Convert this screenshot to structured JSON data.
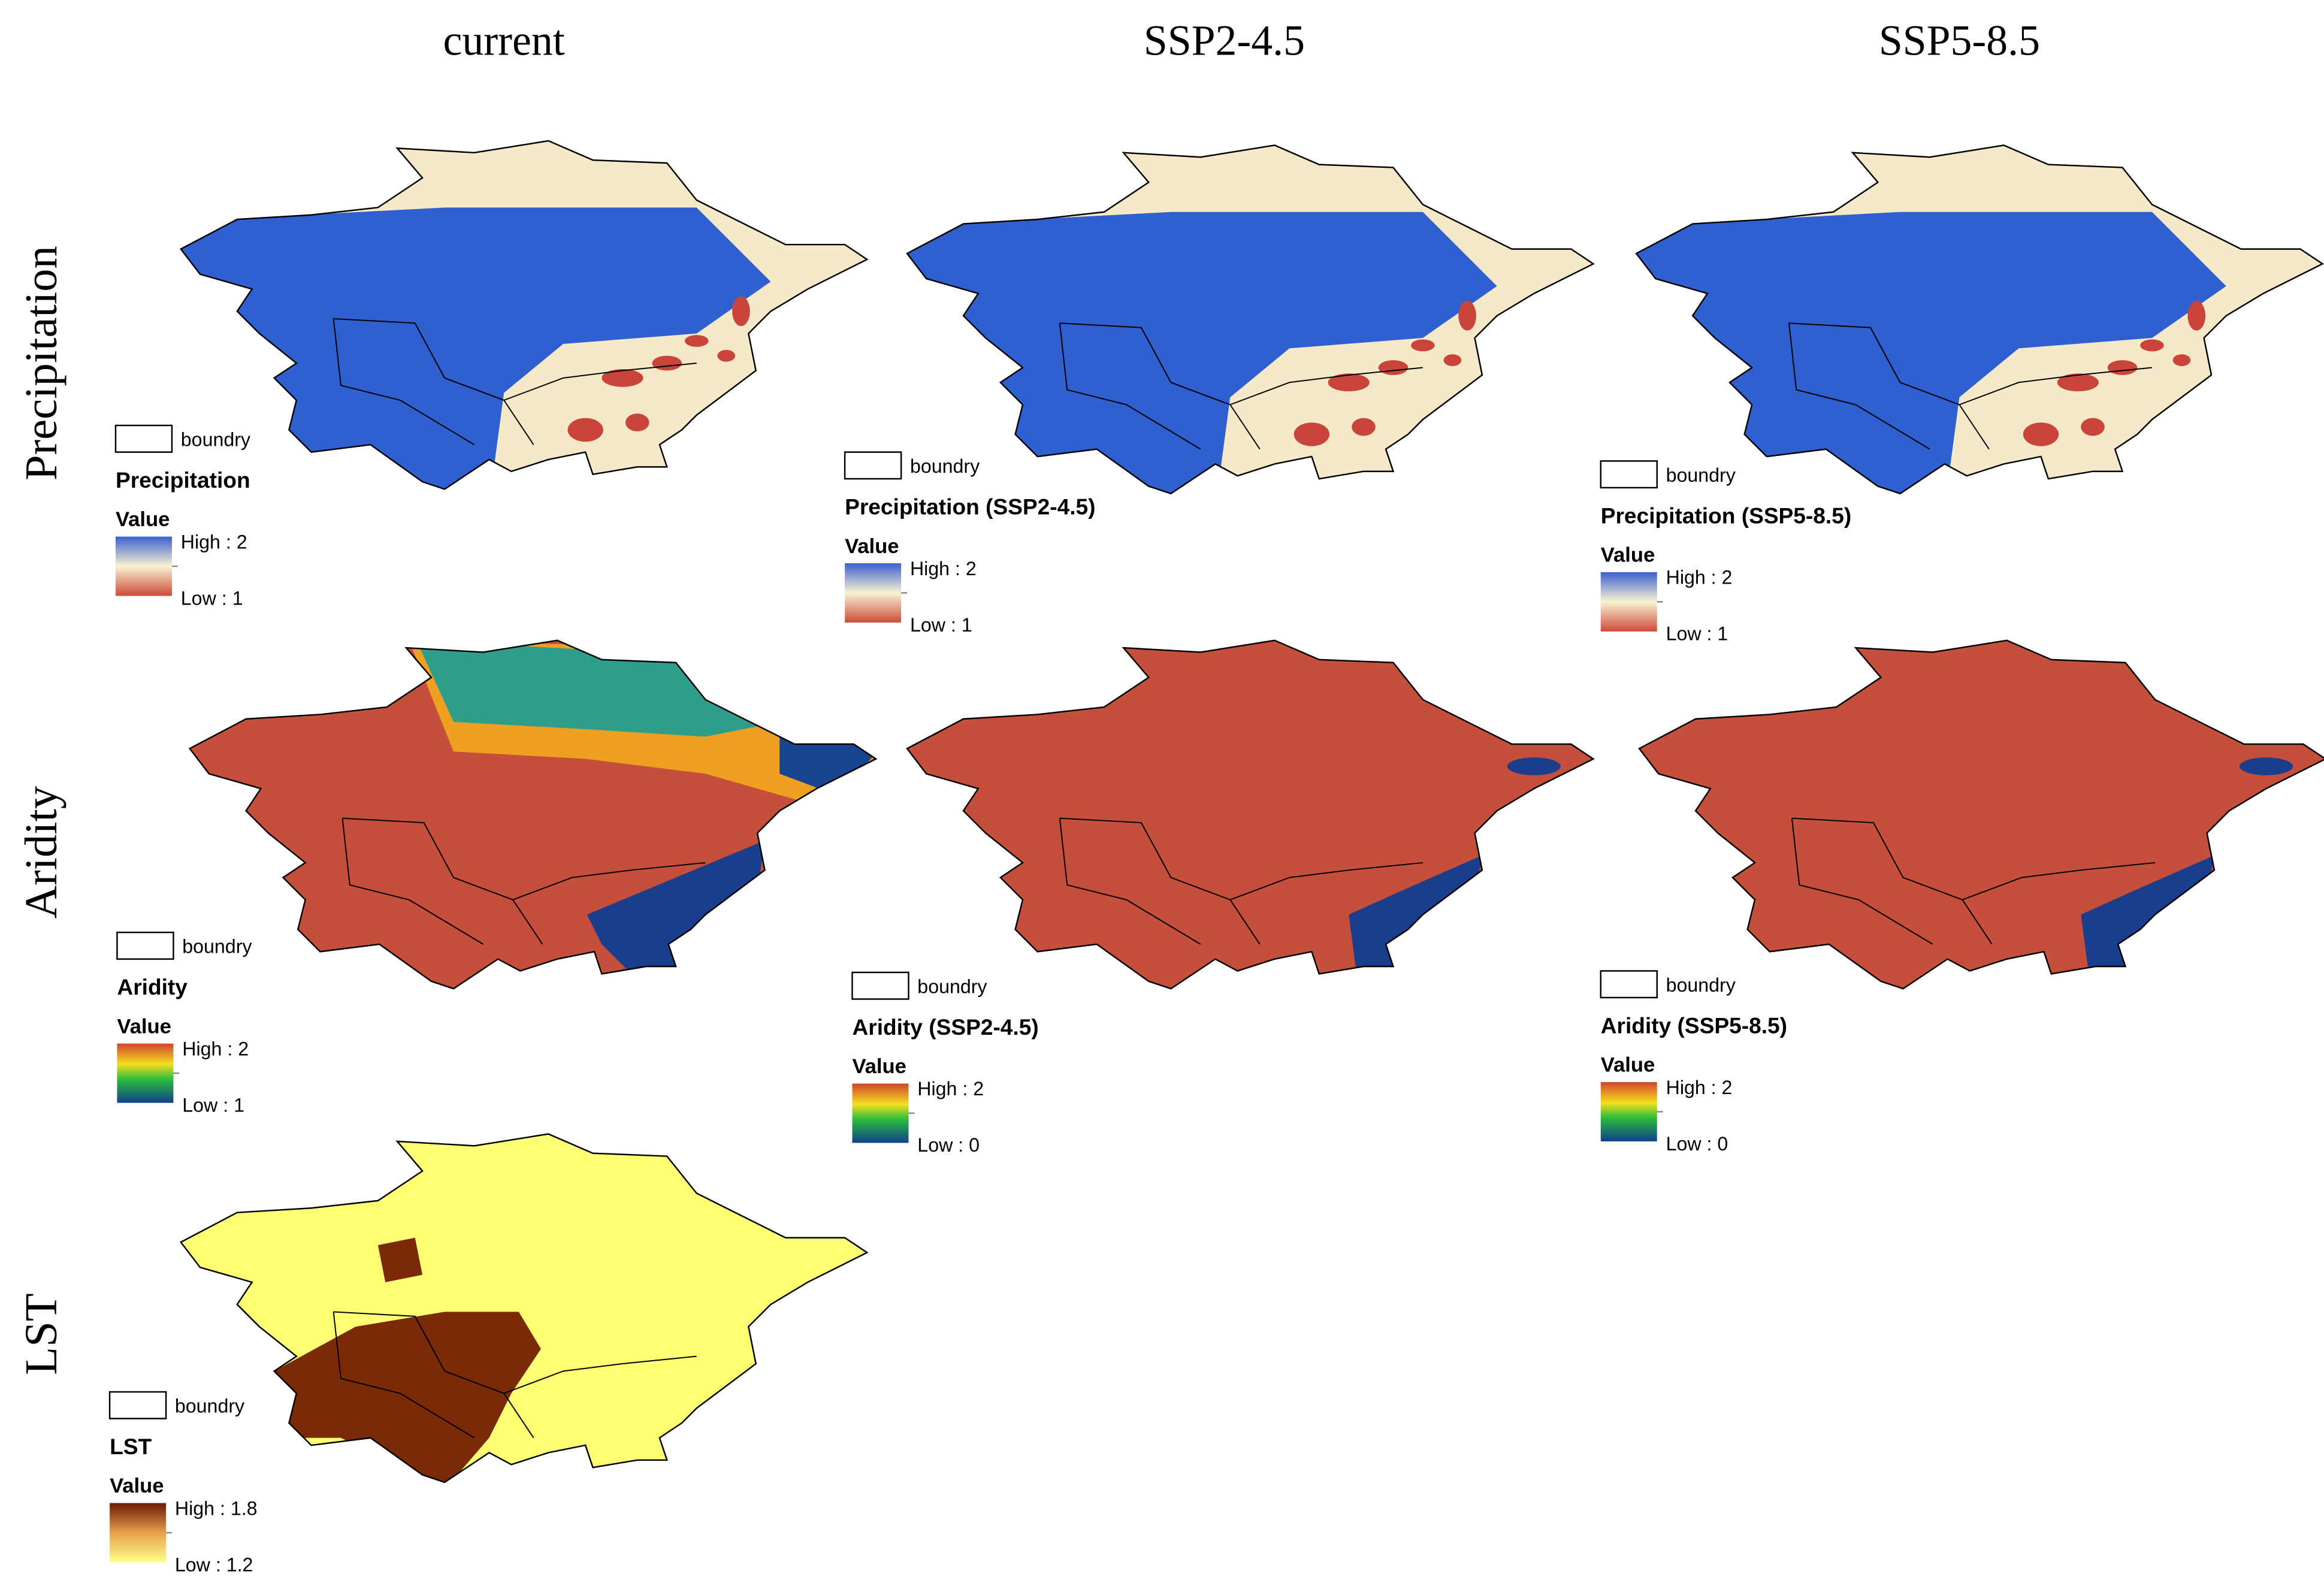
{
  "columns": [
    "current",
    "SSP2-4.5",
    "SSP5-8.5"
  ],
  "rows": [
    "Precipitation",
    "Aridity",
    "LST"
  ],
  "panels": [
    {
      "boundary_label": "boundry",
      "legend_title": "Precipitation",
      "value_heading": "Value",
      "high_label": "High : 2",
      "low_label": "Low : 1"
    },
    {
      "boundary_label": "boundry",
      "legend_title": "Precipitation (SSP2-4.5)",
      "value_heading": "Value",
      "high_label": "High : 2",
      "low_label": "Low : 1"
    },
    {
      "boundary_label": "boundry",
      "legend_title": "Precipitation (SSP5-8.5)",
      "value_heading": "Value",
      "high_label": "High : 2",
      "low_label": "Low : 1"
    },
    {
      "boundary_label": "boundry",
      "legend_title": "Aridity",
      "value_heading": "Value",
      "high_label": "High : 2",
      "low_label": "Low : 1"
    },
    {
      "boundary_label": "boundry",
      "legend_title": "Aridity (SSP2-4.5)",
      "value_heading": "Value",
      "high_label": "High : 2",
      "low_label": "Low : 0"
    },
    {
      "boundary_label": "boundry",
      "legend_title": "Aridity (SSP5-8.5)",
      "value_heading": "Value",
      "high_label": "High : 2",
      "low_label": "Low : 0"
    },
    {
      "boundary_label": "boundry",
      "legend_title": "LST",
      "value_heading": "Value",
      "high_label": "High : 1.8",
      "low_label": "Low : 1.2"
    }
  ]
}
